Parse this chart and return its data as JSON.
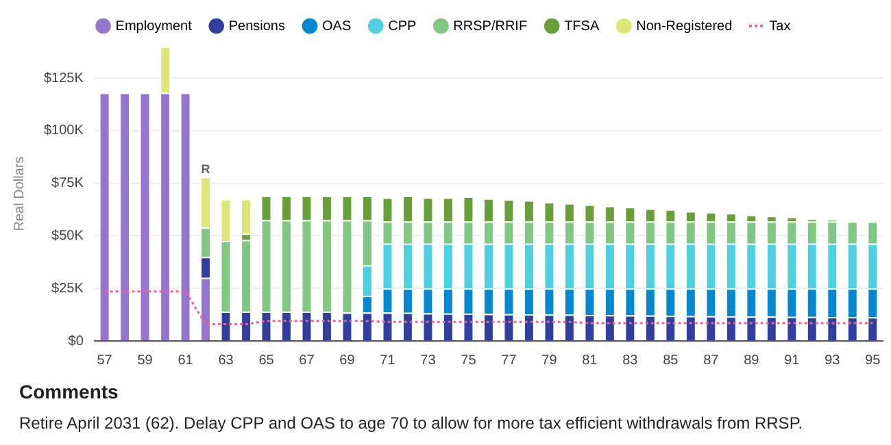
{
  "chart_data": {
    "type": "bar",
    "stacked": true,
    "ylabel": "Real Dollars",
    "categories": [
      "57",
      null,
      "59",
      null,
      "61",
      null,
      "63",
      null,
      "65",
      null,
      "67",
      null,
      "69",
      null,
      "71",
      null,
      "73",
      null,
      "75",
      null,
      "77",
      null,
      "79",
      null,
      "81",
      null,
      "83",
      null,
      "85",
      null,
      "87",
      null,
      "89",
      null,
      "91",
      null,
      "93",
      null,
      "95"
    ],
    "series": [
      {
        "name": "Employment",
        "color": "#9575cd",
        "values": [
          118,
          118,
          118,
          118,
          118,
          30,
          null,
          null,
          null,
          null,
          null,
          null,
          null,
          null,
          null,
          null,
          null,
          null,
          null,
          null,
          null,
          null,
          null,
          null,
          null,
          null,
          null,
          null,
          null,
          null,
          null,
          null,
          null,
          null,
          null,
          null,
          null,
          null,
          null
        ]
      },
      {
        "name": "Pensions",
        "color": "#303f9f",
        "values": [
          null,
          null,
          null,
          null,
          null,
          10,
          14,
          14,
          14,
          14,
          14,
          14,
          13.5,
          13.5,
          13.5,
          13.4,
          13.2,
          13.1,
          13,
          12.9,
          12.8,
          12.7,
          12.6,
          12.5,
          12.4,
          12.3,
          12.2,
          12.1,
          12,
          11.9,
          11.8,
          11.7,
          11.6,
          11.6,
          11.5,
          11.5,
          11.4,
          11.4,
          11.3
        ]
      },
      {
        "name": "OAS",
        "color": "#0288d1",
        "values": [
          null,
          null,
          null,
          null,
          null,
          null,
          null,
          null,
          null,
          null,
          null,
          null,
          null,
          8,
          11.5,
          11.6,
          11.8,
          11.9,
          12,
          12.1,
          12.2,
          12.3,
          12.4,
          12.5,
          12.6,
          12.7,
          12.8,
          12.9,
          13,
          13.1,
          13.2,
          13.3,
          13.4,
          13.4,
          13.5,
          13.5,
          13.6,
          13.6,
          13.7
        ]
      },
      {
        "name": "CPP",
        "color": "#4dd0e1",
        "values": [
          null,
          null,
          null,
          null,
          null,
          null,
          null,
          null,
          null,
          null,
          null,
          null,
          null,
          14.5,
          21.3,
          21.3,
          21.3,
          21.3,
          21.3,
          21.3,
          21.3,
          21.3,
          21.3,
          21.3,
          21.3,
          21.3,
          21.3,
          21.3,
          21.3,
          21.3,
          21.3,
          21.3,
          21.3,
          21.3,
          21.3,
          21.3,
          21.3,
          21.3,
          21.3
        ]
      },
      {
        "name": "RRSP/RRIF",
        "color": "#81c784",
        "values": [
          null,
          null,
          null,
          null,
          null,
          14,
          33.5,
          34,
          43.5,
          43.5,
          43.5,
          43.5,
          44,
          21.5,
          10.5,
          10.5,
          10.5,
          10.5,
          10.5,
          10.5,
          10.5,
          10.5,
          10.5,
          10.5,
          10.5,
          10.5,
          10.5,
          10.5,
          10.5,
          10.5,
          10.5,
          10.5,
          10.5,
          10.5,
          10.5,
          10.5,
          10.5,
          10.5,
          10.5
        ]
      },
      {
        "name": "TFSA",
        "color": "#689f38",
        "values": [
          null,
          null,
          null,
          null,
          null,
          null,
          null,
          3,
          11.5,
          11.5,
          11.5,
          11.5,
          11.5,
          11.5,
          11.4,
          12.2,
          11.4,
          11.4,
          11.9,
          11,
          10.5,
          10.1,
          9.2,
          8.7,
          8.1,
          7.4,
          6.9,
          6.2,
          5.8,
          4.9,
          4.5,
          4,
          3.1,
          2.7,
          2.2,
          1.3,
          0.9,
          null,
          null
        ]
      },
      {
        "name": "Non-Registered",
        "color": "#dce775",
        "values": [
          null,
          null,
          null,
          22,
          null,
          24,
          20,
          16.5,
          null,
          null,
          null,
          null,
          null,
          null,
          null,
          null,
          null,
          null,
          null,
          null,
          null,
          null,
          null,
          null,
          null,
          null,
          null,
          null,
          null,
          null,
          null,
          null,
          null,
          null,
          null,
          null,
          null,
          null,
          null
        ]
      },
      {
        "name": "Tax",
        "type": "line",
        "color": "#f06292",
        "line_style": "dotted",
        "marker": "none",
        "values": [
          23.5,
          23.5,
          23.5,
          23.5,
          23.5,
          8,
          8,
          8,
          9.5,
          9.5,
          9.5,
          9.5,
          9.5,
          9.5,
          9,
          9,
          9,
          9,
          9,
          9,
          9,
          9,
          9,
          9,
          8.5,
          8.5,
          8.5,
          8.5,
          8.5,
          8.5,
          8.5,
          8.5,
          8.5,
          8.5,
          8.5,
          8.5,
          8.5,
          8.5,
          8.5
        ]
      }
    ],
    "ylim": [
      0,
      140
    ],
    "yticks": [
      {
        "value": 0,
        "label": "$0"
      },
      {
        "value": 25,
        "label": "$25K"
      },
      {
        "value": 50,
        "label": "$50K"
      },
      {
        "value": 75,
        "label": "$75K"
      },
      {
        "value": 100,
        "label": "$100K"
      },
      {
        "value": 125,
        "label": "$125K"
      }
    ],
    "grid": "y",
    "legend": "top",
    "annotations": [
      {
        "text": "R",
        "y": 78
      },
      "Comments",
      "Retire April 2031 (62). Delay CPP and OAS to age 70 to allow for more tax efficient withdrawals from RRSP."
    ]
  }
}
